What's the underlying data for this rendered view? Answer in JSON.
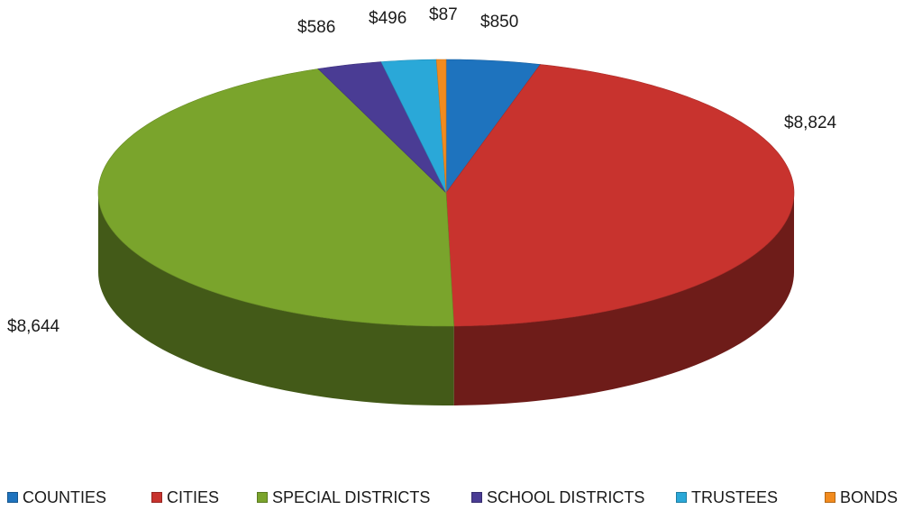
{
  "chart_data": {
    "type": "pie",
    "title": "",
    "categories": [
      "COUNTIES",
      "CITIES",
      "SPECIAL DISTRICTS",
      "SCHOOL DISTRICTS",
      "TRUSTEES",
      "BONDS"
    ],
    "values": [
      850,
      8824,
      8644,
      586,
      496,
      87
    ],
    "data_labels": [
      "$850",
      "$8,824",
      "$8,644",
      "$586",
      "$496",
      "$87"
    ],
    "colors": [
      "#1e73be",
      "#c8332e",
      "#7aa42c",
      "#4a3c94",
      "#2aa8d8",
      "#f28b1e"
    ],
    "legend_position": "bottom",
    "three_d": true
  }
}
